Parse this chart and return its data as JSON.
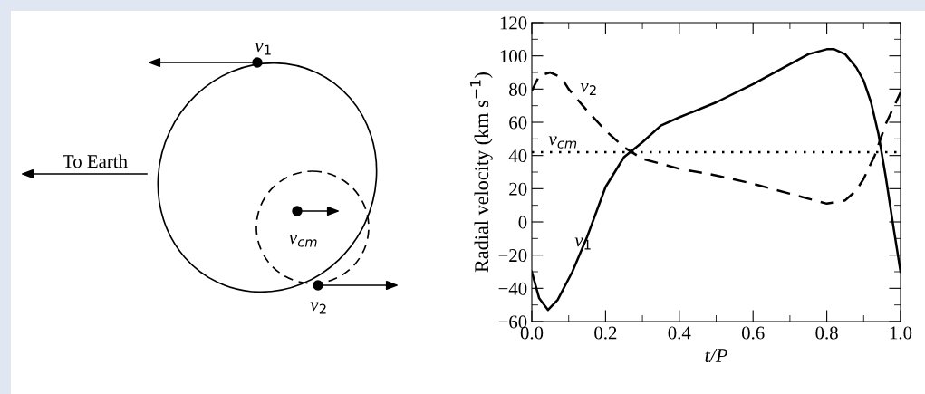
{
  "chart_data": [
    {
      "type": "other",
      "annotations": [
        "To Earth",
        "v$_{1}$",
        "v$_{2}$",
        "v$_{cm}$"
      ]
    },
    {
      "type": "line",
      "xlabel": "t/P",
      "ylabel": "Radial velocity (km s$^{−1}$)",
      "xlim": [
        0.0,
        1.0
      ],
      "xticks": [
        {
          "value": 0,
          "label": "0.0"
        },
        0.2,
        0.4,
        0.6,
        0.8,
        {
          "value": 1,
          "label": "1.0"
        }
      ],
      "ylim": [
        -60,
        120
      ],
      "yticks": [
        {
          "value": -60,
          "label": "−60"
        },
        {
          "value": -40,
          "label": "−40"
        },
        {
          "value": -20,
          "label": "−20"
        },
        0,
        20,
        40,
        60,
        80,
        100,
        120
      ],
      "grid": false,
      "legend": false,
      "marker": "none",
      "series": [
        {
          "name": "v$_{1}$",
          "color": "#000000",
          "line_style": "solid",
          "x": [
            0,
            0.02,
            0.044,
            0.07,
            0.11,
            0.15,
            0.2,
            0.25,
            0.3,
            0.35,
            0.4,
            0.5,
            0.6,
            0.7,
            0.75,
            0.8,
            0.82,
            0.85,
            0.88,
            0.9,
            0.92,
            0.94,
            0.96,
            0.98,
            1.0
          ],
          "values": [
            -30,
            -46,
            -53,
            -47,
            -30,
            -9,
            21,
            39,
            48,
            58,
            63,
            72,
            83,
            95,
            101,
            104,
            104,
            101,
            93,
            85,
            72,
            53,
            27,
            -2,
            -30
          ]
        },
        {
          "name": "v$_{2}$",
          "color": "#000000",
          "line_style": "dashed",
          "x": [
            0,
            0.02,
            0.05,
            0.08,
            0.1,
            0.15,
            0.2,
            0.25,
            0.3,
            0.4,
            0.5,
            0.6,
            0.7,
            0.75,
            0.8,
            0.85,
            0.88,
            0.9,
            0.93,
            0.96,
            1.0
          ],
          "values": [
            79,
            88,
            90,
            87,
            80,
            67,
            55,
            45,
            38,
            32,
            28,
            23,
            17,
            14,
            11,
            13,
            19,
            26,
            40,
            59,
            78
          ]
        }
      ],
      "ref_lines": [
        {
          "axis": "y",
          "value": 42,
          "label": "v$_{cm}$",
          "line_style": "dotted",
          "color": "#000000"
        }
      ]
    }
  ]
}
